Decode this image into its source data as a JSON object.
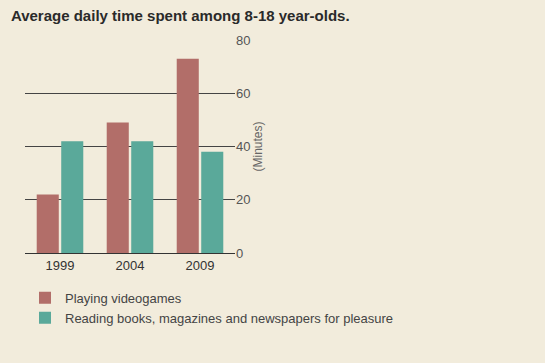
{
  "chart_data": {
    "type": "bar",
    "title": "Average daily time spent among 8-18 year-olds.",
    "y_label": "(Minutes)",
    "categories": [
      "1999",
      "2004",
      "2009"
    ],
    "series": [
      {
        "name": "Playing videogames",
        "color": "#b26e69",
        "values": [
          22,
          49,
          73
        ]
      },
      {
        "name": "Reading books, magazines and newspapers for pleasure",
        "color": "#5aa99a",
        "values": [
          42,
          42,
          38
        ]
      }
    ],
    "ylim": [
      0,
      80
    ],
    "yticks": [
      0,
      20,
      40,
      60,
      80
    ],
    "grid": true,
    "legend": "bottom left"
  }
}
